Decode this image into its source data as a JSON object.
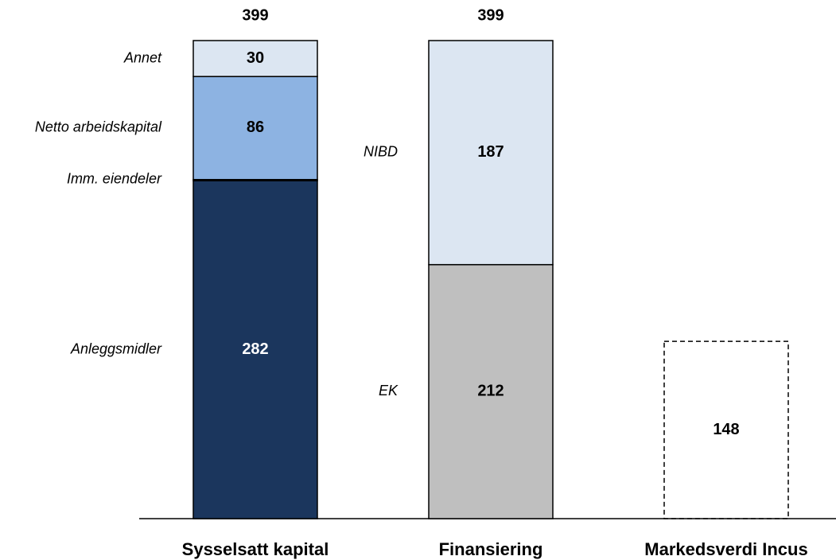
{
  "chart_data": {
    "type": "stacked-bar",
    "categories": [
      "Sysselsatt kapital",
      "Finansiering",
      "Markedsverdi Incus"
    ],
    "totals": [
      399,
      399,
      null
    ],
    "series": [
      {
        "name": "Anleggsmidler",
        "color": "#1b365d",
        "values": [
          282,
          null,
          null
        ]
      },
      {
        "name": "Imm. eiendeler",
        "color": "#111111",
        "values": [
          1,
          null,
          null
        ]
      },
      {
        "name": "Netto arbeidskapital",
        "color": "#8db3e2",
        "values": [
          86,
          null,
          null
        ]
      },
      {
        "name": "Annet",
        "color": "#dce6f2",
        "values": [
          30,
          null,
          null
        ]
      },
      {
        "name": "EK",
        "color": "#bfbfbf",
        "values": [
          null,
          212,
          null
        ]
      },
      {
        "name": "NIBD",
        "color": "#dce6f2",
        "values": [
          null,
          187,
          null
        ]
      },
      {
        "color": "none",
        "style": "dashed",
        "values": [
          null,
          null,
          148
        ]
      }
    ]
  }
}
